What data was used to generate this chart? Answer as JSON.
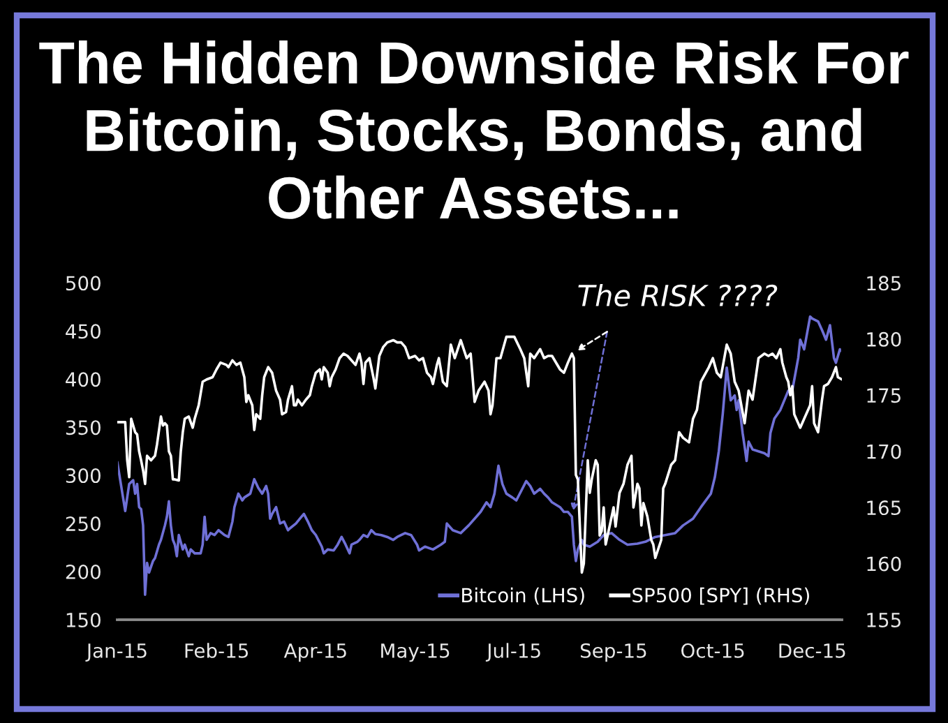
{
  "chart_data": {
    "type": "line",
    "title": "The Hidden Downside Risk For\nBitcoin, Stocks, Bonds, and\nOther Assets...",
    "series": [
      {
        "name": "Bitcoin (LHS)",
        "color": "#6f70d6",
        "axis": "y",
        "x": [
          "2015-01-01",
          "2015-01-05",
          "2015-01-07",
          "2015-01-09",
          "2015-01-10",
          "2015-01-11",
          "2015-01-12",
          "2015-01-13",
          "2015-01-14",
          "2015-01-15",
          "2015-01-16",
          "2015-01-17",
          "2015-01-19",
          "2015-01-20",
          "2015-01-22",
          "2015-01-23",
          "2015-01-25",
          "2015-01-26",
          "2015-01-27",
          "2015-01-28",
          "2015-01-29",
          "2015-01-30",
          "2015-01-31",
          "2015-02-01",
          "2015-02-03",
          "2015-02-04",
          "2015-02-06",
          "2015-02-07",
          "2015-02-09",
          "2015-02-12",
          "2015-02-13",
          "2015-02-14",
          "2015-02-15",
          "2015-02-17",
          "2015-02-19",
          "2015-02-21",
          "2015-02-24",
          "2015-02-26",
          "2015-02-28",
          "2015-03-01",
          "2015-03-03",
          "2015-03-05",
          "2015-03-06",
          "2015-03-09",
          "2015-03-11",
          "2015-03-13",
          "2015-03-15",
          "2015-03-17",
          "2015-03-18",
          "2015-03-19",
          "2015-03-20",
          "2015-03-22",
          "2015-03-24",
          "2015-03-26",
          "2015-03-28",
          "2015-03-29",
          "2015-04-01",
          "2015-04-03",
          "2015-04-05",
          "2015-04-07",
          "2015-04-09",
          "2015-04-11",
          "2015-04-14",
          "2015-04-15",
          "2015-04-17",
          "2015-04-20",
          "2015-04-22",
          "2015-04-24",
          "2015-04-26",
          "2015-04-28",
          "2015-04-29",
          "2015-05-02",
          "2015-05-03",
          "2015-05-05",
          "2015-05-07",
          "2015-05-09",
          "2015-05-11",
          "2015-05-14",
          "2015-05-17",
          "2015-05-20",
          "2015-05-22",
          "2015-05-26",
          "2015-05-29",
          "2015-06-01",
          "2015-06-02",
          "2015-06-05",
          "2015-06-09",
          "2015-06-13",
          "2015-06-15",
          "2015-06-16",
          "2015-06-19",
          "2015-06-23",
          "2015-06-27",
          "2015-06-30",
          "2015-07-03",
          "2015-07-06",
          "2015-07-08",
          "2015-07-10",
          "2015-07-12",
          "2015-07-14",
          "2015-07-16",
          "2015-07-19",
          "2015-07-21",
          "2015-07-24",
          "2015-07-26",
          "2015-07-28",
          "2015-07-30",
          "2015-08-02",
          "2015-08-04",
          "2015-08-06",
          "2015-08-08",
          "2015-08-12",
          "2015-08-14",
          "2015-08-16",
          "2015-08-18",
          "2015-08-19",
          "2015-08-20",
          "2015-08-21",
          "2015-08-23",
          "2015-08-24",
          "2015-08-27",
          "2015-08-31",
          "2015-09-03",
          "2015-09-07",
          "2015-09-11",
          "2015-09-15",
          "2015-09-20",
          "2015-09-24",
          "2015-09-29",
          "2015-10-04",
          "2015-10-09",
          "2015-10-13",
          "2015-10-18",
          "2015-10-22",
          "2015-10-27",
          "2015-10-29",
          "2015-10-31",
          "2015-11-02",
          "2015-11-04",
          "2015-11-06",
          "2015-11-08",
          "2015-11-09",
          "2015-11-10",
          "2015-11-12",
          "2015-11-13",
          "2015-11-14",
          "2015-11-15",
          "2015-11-17",
          "2015-11-20",
          "2015-11-23",
          "2015-11-25",
          "2015-11-26",
          "2015-11-28",
          "2015-12-01",
          "2015-12-03",
          "2015-12-05",
          "2015-12-07",
          "2015-12-10",
          "2015-12-11",
          "2015-12-13",
          "2015-12-16",
          "2015-12-17",
          "2015-12-20",
          "2015-12-22",
          "2015-12-24",
          "2015-12-26",
          "2015-12-28",
          "2015-12-29",
          "2015-12-31",
          "2016-01-01"
        ],
        "values": [
          314,
          263,
          291,
          295,
          281,
          291,
          267,
          265,
          248,
          176,
          209,
          199,
          211,
          214,
          228,
          233,
          248,
          257,
          273,
          248,
          233,
          228,
          216,
          238,
          223,
          228,
          216,
          223,
          219,
          219,
          228,
          257,
          233,
          240,
          238,
          243,
          238,
          236,
          252,
          267,
          281,
          274,
          277,
          281,
          296,
          287,
          281,
          289,
          281,
          255,
          260,
          267,
          250,
          252,
          243,
          245,
          250,
          255,
          260,
          252,
          243,
          238,
          226,
          219,
          223,
          222,
          228,
          236,
          228,
          219,
          228,
          231,
          233,
          238,
          236,
          243,
          239,
          238,
          236,
          233,
          236,
          240,
          238,
          228,
          222,
          226,
          223,
          228,
          231,
          250,
          243,
          240,
          248,
          255,
          262,
          272,
          267,
          281,
          310,
          291,
          281,
          277,
          274,
          286,
          294,
          289,
          281,
          286,
          281,
          277,
          272,
          267,
          262,
          262,
          257,
          228,
          211,
          223,
          233,
          228,
          226,
          231,
          238,
          240,
          233,
          228,
          229,
          231,
          236,
          238,
          240,
          248,
          255,
          267,
          281,
          298,
          325,
          364,
          412,
          378,
          383,
          368,
          378,
          344,
          330,
          315,
          335,
          327,
          325,
          323,
          320,
          344,
          359,
          368,
          378,
          388,
          388,
          422,
          441,
          431,
          465,
          463,
          460,
          451,
          441,
          456,
          422,
          417,
          431,
          429
        ]
      },
      {
        "name": "SP500 [SPY] (RHS)",
        "color": "#ffffff",
        "axis": "y2",
        "x": [
          "2015-01-01",
          "2015-01-05",
          "2015-01-06",
          "2015-01-07",
          "2015-01-08",
          "2015-01-10",
          "2015-01-11",
          "2015-01-12",
          "2015-01-13",
          "2015-01-14",
          "2015-01-15",
          "2015-01-16",
          "2015-01-18",
          "2015-01-20",
          "2015-01-21",
          "2015-01-23",
          "2015-01-24",
          "2015-01-25",
          "2015-01-26",
          "2015-01-27",
          "2015-01-28",
          "2015-01-29",
          "2015-01-30",
          "2015-02-01",
          "2015-02-02",
          "2015-02-03",
          "2015-02-04",
          "2015-02-06",
          "2015-02-08",
          "2015-02-09",
          "2015-02-11",
          "2015-02-13",
          "2015-02-15",
          "2015-02-18",
          "2015-02-20",
          "2015-02-22",
          "2015-02-25",
          "2015-02-26",
          "2015-02-28",
          "2015-03-02",
          "2015-03-04",
          "2015-03-06",
          "2015-03-07",
          "2015-03-08",
          "2015-03-10",
          "2015-03-11",
          "2015-03-12",
          "2015-03-14",
          "2015-03-15",
          "2015-03-16",
          "2015-03-18",
          "2015-03-20",
          "2015-03-22",
          "2015-03-24",
          "2015-03-25",
          "2015-03-27",
          "2015-03-28",
          "2015-03-30",
          "2015-03-31",
          "2015-04-01",
          "2015-04-02",
          "2015-04-04",
          "2015-04-06",
          "2015-04-08",
          "2015-04-09",
          "2015-04-11",
          "2015-04-13",
          "2015-04-14",
          "2015-04-15",
          "2015-04-17",
          "2015-04-18",
          "2015-04-19",
          "2015-04-21",
          "2015-04-23",
          "2015-04-25",
          "2015-04-27",
          "2015-04-28",
          "2015-05-01",
          "2015-05-03",
          "2015-05-04",
          "2015-05-05",
          "2015-05-06",
          "2015-05-08",
          "2015-05-10",
          "2015-05-11",
          "2015-05-13",
          "2015-05-15",
          "2015-05-17",
          "2015-05-20",
          "2015-05-22",
          "2015-05-24",
          "2015-05-26",
          "2015-05-28",
          "2015-05-31",
          "2015-06-02",
          "2015-06-04",
          "2015-06-06",
          "2015-06-08",
          "2015-06-09",
          "2015-06-11",
          "2015-06-12",
          "2015-06-14",
          "2015-06-15",
          "2015-06-16",
          "2015-06-18",
          "2015-06-20",
          "2015-06-23",
          "2015-06-26",
          "2015-06-28",
          "2015-06-30",
          "2015-07-02",
          "2015-07-05",
          "2015-07-07",
          "2015-07-08",
          "2015-07-09",
          "2015-07-11",
          "2015-07-13",
          "2015-07-16",
          "2015-07-20",
          "2015-07-23",
          "2015-07-25",
          "2015-07-27",
          "2015-07-28",
          "2015-07-30",
          "2015-08-02",
          "2015-08-04",
          "2015-08-06",
          "2015-08-08",
          "2015-08-12",
          "2015-08-14",
          "2015-08-16",
          "2015-08-18",
          "2015-08-19",
          "2015-08-20",
          "2015-08-21",
          "2015-08-23",
          "2015-08-24",
          "2015-08-26",
          "2015-08-27",
          "2015-08-28",
          "2015-08-30",
          "2015-08-31",
          "2015-09-01",
          "2015-09-02",
          "2015-09-03",
          "2015-09-04",
          "2015-09-05",
          "2015-09-08",
          "2015-09-09",
          "2015-09-11",
          "2015-09-13",
          "2015-09-15",
          "2015-09-17",
          "2015-09-18",
          "2015-09-20",
          "2015-09-21",
          "2015-09-22",
          "2015-09-23",
          "2015-09-25",
          "2015-09-27",
          "2015-09-28",
          "2015-09-29",
          "2015-10-02",
          "2015-10-03",
          "2015-10-04",
          "2015-10-07",
          "2015-10-09",
          "2015-10-11",
          "2015-10-13",
          "2015-10-16",
          "2015-10-18",
          "2015-10-20",
          "2015-10-22",
          "2015-10-26",
          "2015-10-28",
          "2015-10-30",
          "2015-11-01",
          "2015-11-04",
          "2015-11-06",
          "2015-11-08",
          "2015-11-10",
          "2015-11-13",
          "2015-11-15",
          "2015-11-17",
          "2015-11-20",
          "2015-11-23",
          "2015-11-25",
          "2015-11-27",
          "2015-11-29",
          "2015-12-01",
          "2015-12-02",
          "2015-12-04",
          "2015-12-05",
          "2015-12-06",
          "2015-12-07",
          "2015-12-08",
          "2015-12-11",
          "2015-12-13",
          "2015-12-16",
          "2015-12-17",
          "2015-12-18",
          "2015-12-20",
          "2015-12-22",
          "2015-12-23",
          "2015-12-25",
          "2015-12-27",
          "2015-12-29",
          "2015-12-30",
          "2016-01-01"
        ],
        "values": [
          172.6,
          172.6,
          169.2,
          167.7,
          172.9,
          171.7,
          171.5,
          170.0,
          169.2,
          168.3,
          167.1,
          169.6,
          169.2,
          169.6,
          170.6,
          173.1,
          172.3,
          172.5,
          172.3,
          170.0,
          169.6,
          167.5,
          167.5,
          167.4,
          170.0,
          171.7,
          172.9,
          173.1,
          172.1,
          172.9,
          174.1,
          176.2,
          176.4,
          176.6,
          177.3,
          177.9,
          177.7,
          177.5,
          178.1,
          177.7,
          177.9,
          176.6,
          174.4,
          175.0,
          174.1,
          171.9,
          173.3,
          172.9,
          175.0,
          176.6,
          177.5,
          177.0,
          175.4,
          174.6,
          173.3,
          173.5,
          174.6,
          175.8,
          174.1,
          174.1,
          174.6,
          174.1,
          174.6,
          175.0,
          175.8,
          177.0,
          177.3,
          176.4,
          177.5,
          177.0,
          175.8,
          176.6,
          177.3,
          178.3,
          178.7,
          178.5,
          178.3,
          177.7,
          178.7,
          177.9,
          176.0,
          177.9,
          178.3,
          176.6,
          175.6,
          178.5,
          179.3,
          179.7,
          179.9,
          179.7,
          179.7,
          179.3,
          178.3,
          178.5,
          178.1,
          178.3,
          177.0,
          176.6,
          176.0,
          177.7,
          178.3,
          176.2,
          176.0,
          175.8,
          179.5,
          178.3,
          179.9,
          178.3,
          178.7,
          174.4,
          175.4,
          176.2,
          175.4,
          173.3,
          174.1,
          178.3,
          178.3,
          180.2,
          180.2,
          179.1,
          178.3,
          175.8,
          178.7,
          178.3,
          179.1,
          178.3,
          178.5,
          178.5,
          177.3,
          177.0,
          177.9,
          178.7,
          178.3,
          167.9,
          167.5,
          159.2,
          160.0,
          169.2,
          166.3,
          167.5,
          169.2,
          168.8,
          162.5,
          162.9,
          165.0,
          161.7,
          162.5,
          165.0,
          163.3,
          166.3,
          167.1,
          168.8,
          169.6,
          165.0,
          167.1,
          166.7,
          163.4,
          165.4,
          164.2,
          162.1,
          161.7,
          160.5,
          162.1,
          166.7,
          167.1,
          168.8,
          169.2,
          171.7,
          171.2,
          170.8,
          172.9,
          173.7,
          176.2,
          177.5,
          178.3,
          177.0,
          176.6,
          179.5,
          178.7,
          176.2,
          175.4,
          172.5,
          175.4,
          174.6,
          178.3,
          178.7,
          178.5,
          178.7,
          178.3,
          179.1,
          177.9,
          176.6,
          176.2,
          175.0,
          175.8,
          173.3,
          172.1,
          172.9,
          174.1,
          175.8,
          172.5,
          171.7,
          174.6,
          175.8,
          176.0,
          176.6,
          177.5,
          176.6,
          176.4
        ]
      }
    ],
    "xlim": [
      "2015-01-01",
      "2016-01-01"
    ],
    "xticks": [
      {
        "value": "2015-01-01",
        "label": "Jan-15"
      },
      {
        "value": "2015-02-20",
        "label": "Feb-15"
      },
      {
        "value": "2015-04-11",
        "label": "Apr-15"
      },
      {
        "value": "2015-05-31",
        "label": "May-15"
      },
      {
        "value": "2015-07-20",
        "label": "Jul-15"
      },
      {
        "value": "2015-09-08",
        "label": "Sep-15"
      },
      {
        "value": "2015-10-28",
        "label": "Oct-15"
      },
      {
        "value": "2015-12-17",
        "label": "Dec-15"
      }
    ],
    "ylim": [
      150,
      500
    ],
    "yticks": [
      150,
      200,
      250,
      300,
      350,
      400,
      450,
      500
    ],
    "y2lim": [
      155,
      185
    ],
    "y2ticks": [
      155,
      160,
      165,
      170,
      175,
      180,
      185
    ],
    "legend": "bottom right",
    "annotations": [
      {
        "text": "The RISK ????",
        "x": "2015-08-18",
        "y": 257
      }
    ]
  }
}
